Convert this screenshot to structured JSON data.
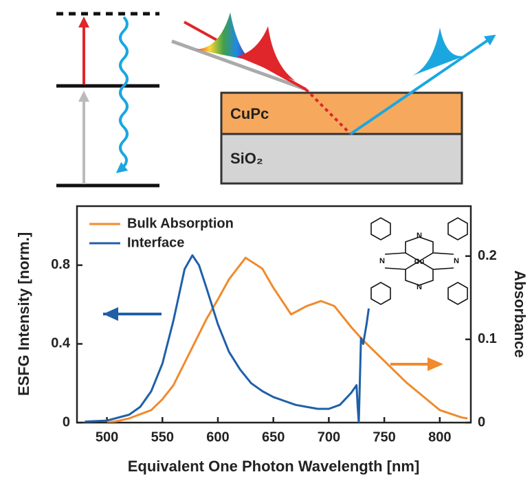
{
  "schematic": {
    "layer_top": "CuPc",
    "layer_bottom": "SiO₂"
  },
  "inset": {
    "metal": "Cu",
    "nitrogen": "N"
  },
  "chart_data": {
    "type": "line",
    "xlabel": "Equivalent One Photon Wavelength [nm]",
    "ylabel": "ESFG Intensity [norm.]",
    "y2label": "Absorbance",
    "xlim": [
      473,
      828
    ],
    "xticks": [
      500,
      550,
      600,
      650,
      700,
      750,
      800
    ],
    "ylim": [
      0,
      1.1
    ],
    "yticks": [
      0,
      0.4,
      0.8
    ],
    "y2lim": [
      0,
      0.26
    ],
    "y2ticks": [
      0,
      0.1,
      0.2
    ],
    "legend": "upper left",
    "series": [
      {
        "name": "Bulk Absorption",
        "color": "#f08a2c",
        "axis": "y2",
        "x": [
          500,
          510,
          520,
          540,
          550,
          560,
          575,
          590,
          600,
          610,
          625,
          640,
          650,
          666,
          680,
          693,
          705,
          720,
          730,
          750,
          770,
          790,
          800,
          820,
          825
        ],
        "values": [
          0,
          0.002,
          0.005,
          0.015,
          0.028,
          0.045,
          0.085,
          0.125,
          0.148,
          0.172,
          0.198,
          0.185,
          0.162,
          0.13,
          0.14,
          0.146,
          0.14,
          0.115,
          0.1,
          0.074,
          0.048,
          0.026,
          0.015,
          0.006,
          0.005
        ]
      },
      {
        "name": "Interface",
        "color": "#1f5fa8",
        "axis": "y",
        "x": [
          480,
          500,
          520,
          530,
          540,
          550,
          560,
          565,
          570,
          577,
          583,
          590,
          600,
          610,
          620,
          630,
          640,
          650,
          660,
          670,
          680,
          690,
          700,
          710,
          720,
          725,
          726,
          727,
          729,
          731,
          734,
          736
        ],
        "values": [
          0.005,
          0.01,
          0.04,
          0.08,
          0.16,
          0.3,
          0.52,
          0.65,
          0.78,
          0.85,
          0.8,
          0.68,
          0.5,
          0.36,
          0.27,
          0.2,
          0.16,
          0.13,
          0.11,
          0.09,
          0.08,
          0.07,
          0.07,
          0.09,
          0.15,
          0.19,
          0.08,
          0.0,
          0.43,
          0.4,
          0.5,
          0.58
        ]
      }
    ]
  }
}
